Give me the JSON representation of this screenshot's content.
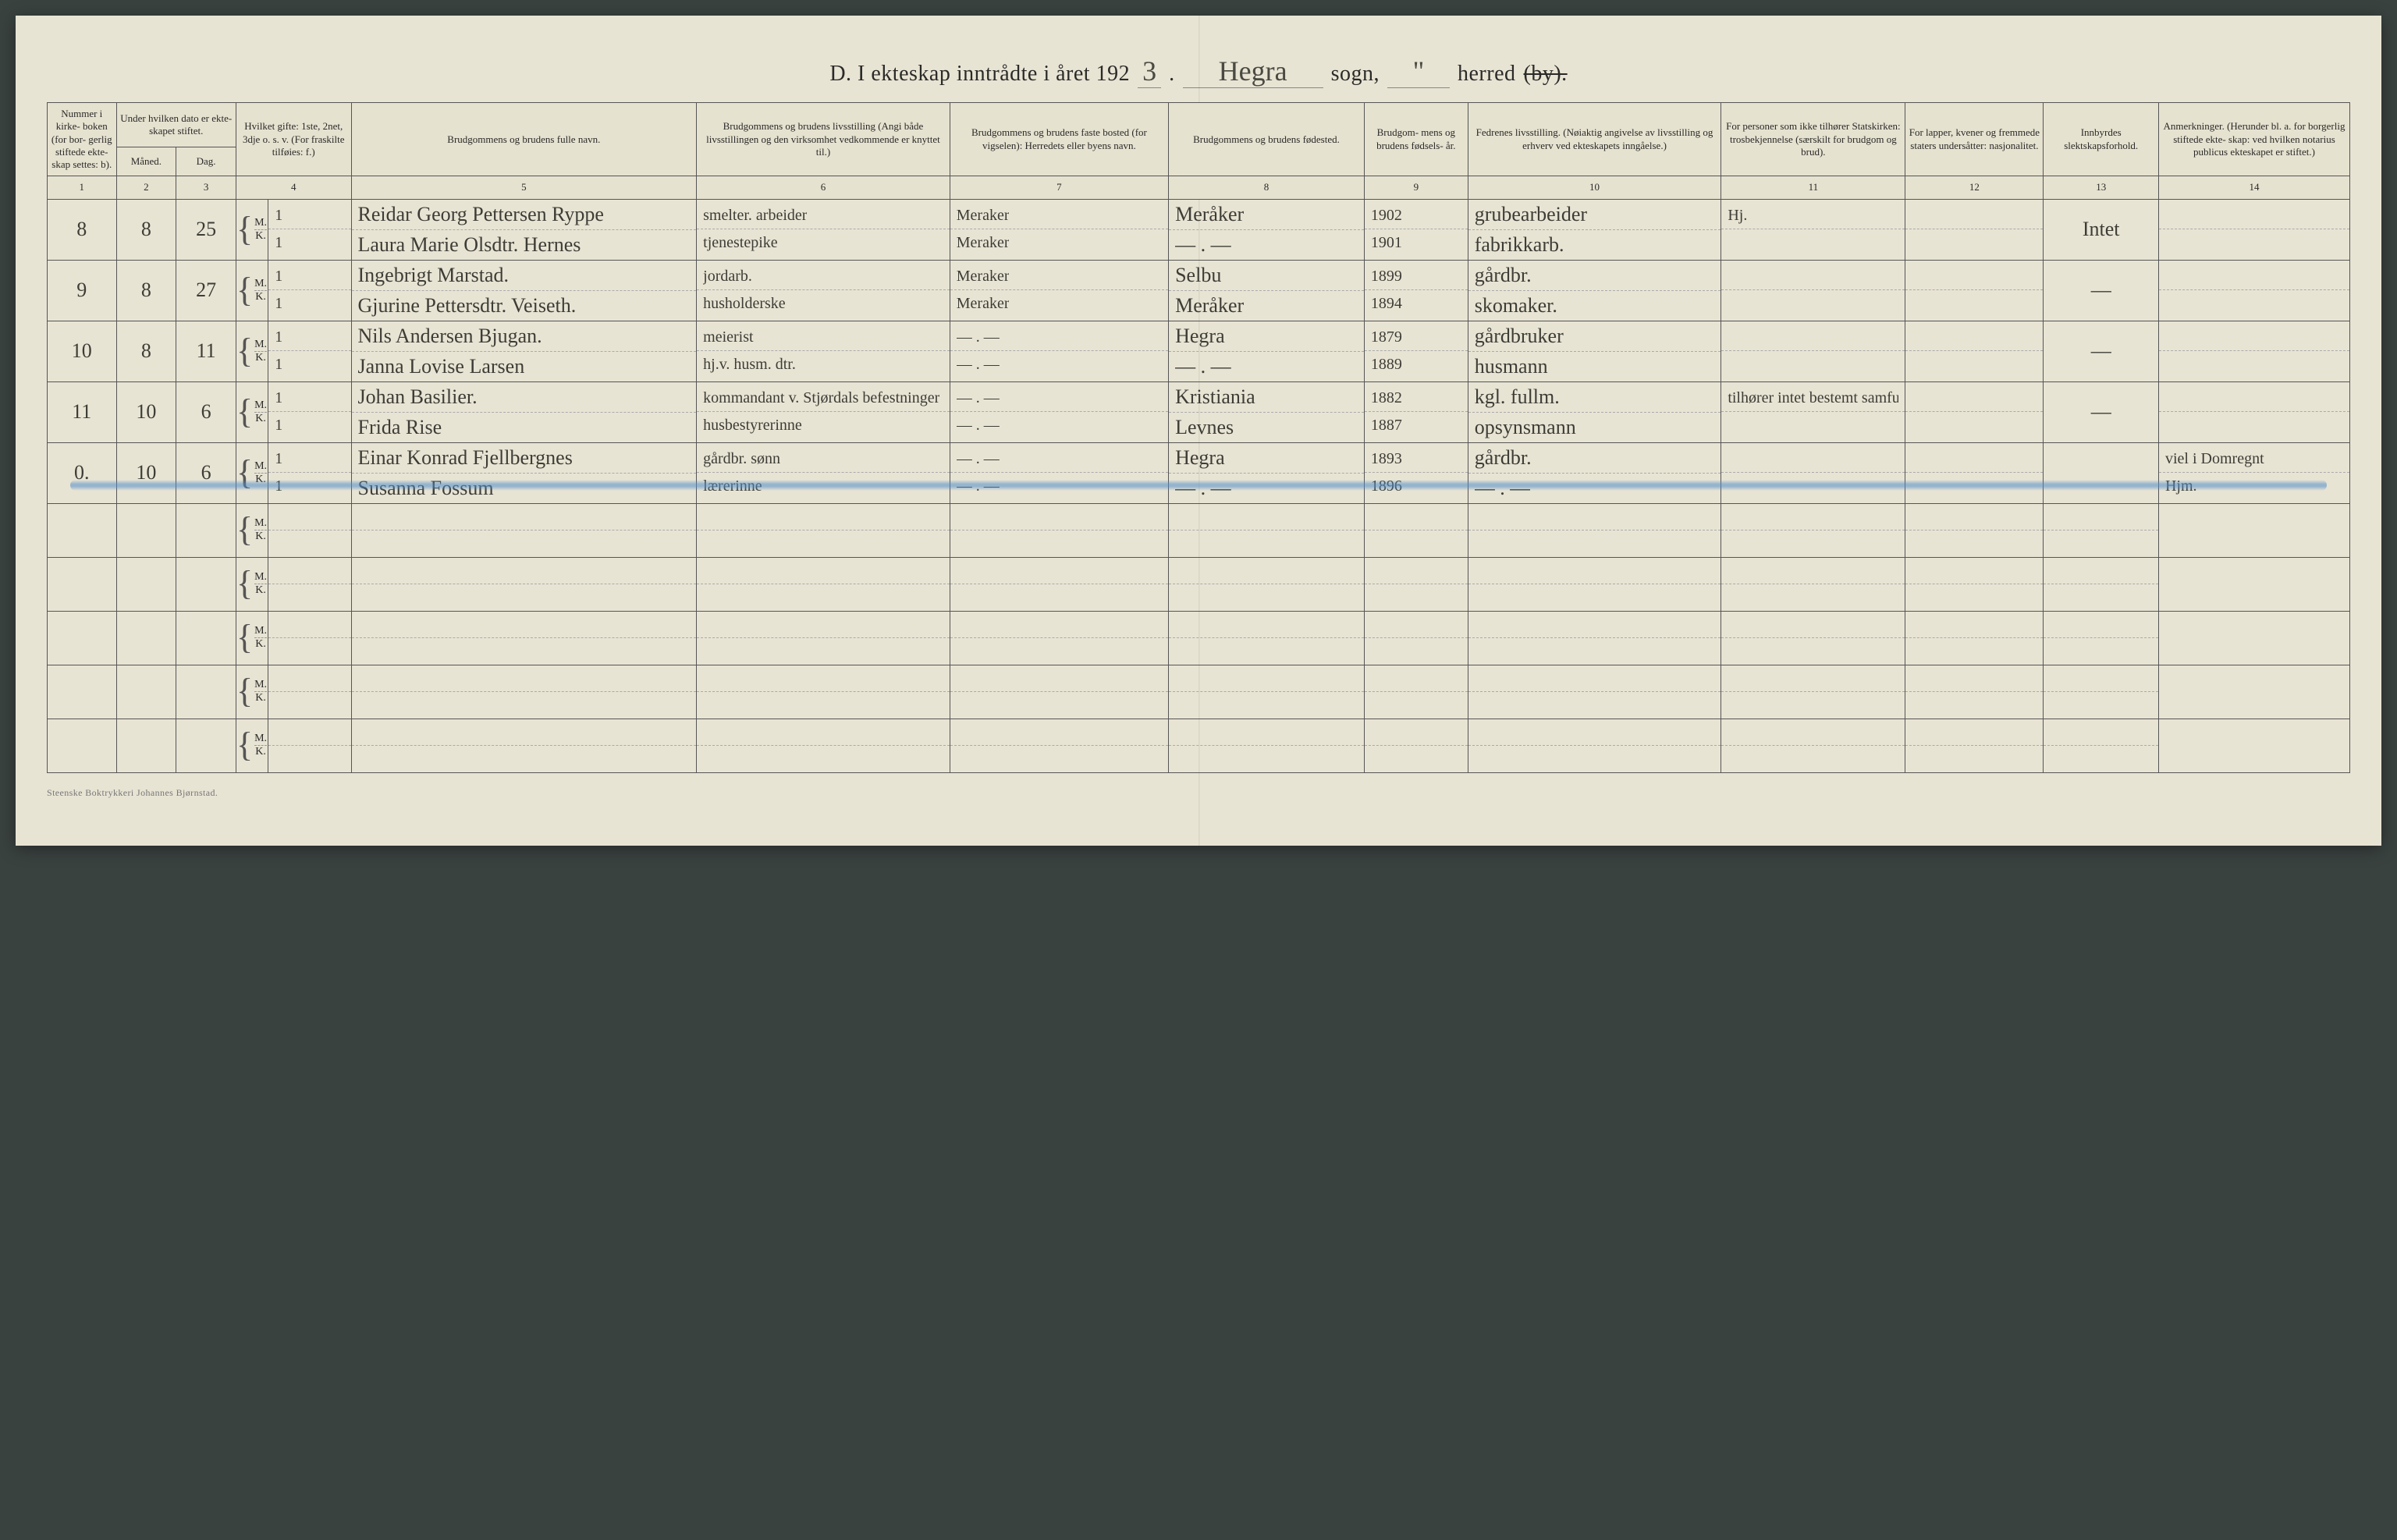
{
  "meta": {
    "background": "#e8e4d4",
    "ink": "#3d3d36",
    "rule": "#555555",
    "blue": "#5a8cc8",
    "hw_font": "Brush Script MT",
    "print_font": "Georgia"
  },
  "title": {
    "prefix": "D.  I ekteskap inntrådte i året 192",
    "year_digit": "3",
    "period": ".",
    "parish_hw": "Hegra",
    "parish_label": "sogn,",
    "district_hw": "\"",
    "district_label_prefix": "herred ",
    "district_label_struck": "(by)."
  },
  "columns": {
    "c1": "Nummer i kirke-\nboken (for bor-\ngerlig stiftede ekte-\nskap settes: b).",
    "c2": "Under hvilken dato er ekte-\nskapet stiftet.",
    "c2a": "Måned.",
    "c2b": "Dag.",
    "c3": "Hvilket gifte:\n1ste, 2net, 3dje\no. s. v.\n(For fraskilte tilføies: f.)",
    "c4": "Brudgommens og brudens fulle navn.",
    "c5": "Brudgommens og brudens livsstilling\n(Angi både livsstillingen og den virksomhet vedkommende er knyttet til.)",
    "c6": "Brudgommens og brudens faste bosted (for vigselen):\nHerredets eller byens navn.",
    "c7": "Brudgommens og brudens fødested.",
    "c8": "Brudgom-\nmens og brudens fødsels-\når.",
    "c9": "Fedrenes livsstilling.\n(Nøiaktig angivelse av livsstilling og erhverv ved ekteskapets inngåelse.)",
    "c10": "For personer som ikke tilhører Statskirken:\ntrosbekjennelse\n(særskilt for brudgom og brud).",
    "c11": "For lapper, kvener og fremmede staters undersåtter:\nnasjonalitet.",
    "c12": "Innbyrdes slektskapsforhold.",
    "c13": "Anmerkninger.\n(Herunder bl. a. for borgerlig stiftede ekte-\nskap: ved hvilken notarius publicus ekteskapet er stiftet.)"
  },
  "colnums": [
    "1",
    "2",
    "3",
    "4",
    "5",
    "6",
    "7",
    "8",
    "9",
    "10",
    "11",
    "12",
    "13",
    "14"
  ],
  "mk": {
    "m": "M.",
    "k": "K."
  },
  "rows": [
    {
      "no": "8",
      "month": "8",
      "day": "25",
      "gifte_m": "1",
      "gifte_k": "1",
      "name_m": "Reidar Georg Pettersen Ryppe",
      "name_k": "Laura Marie Olsdtr. Hernes",
      "occ_m": "smelter. arbeider",
      "occ_k": "tjenestepike",
      "res_m": "Meraker",
      "res_k": "Meraker",
      "birthpl_m": "Meråker",
      "birthpl_k": "— . —",
      "year_m": "1902",
      "year_k": "1901",
      "father_m": "grubearbeider",
      "father_k": "fabrikkarb.",
      "relig_m": "Hj.",
      "relig_k": "",
      "nat_m": "",
      "nat_k": "",
      "kin": "Intet",
      "notes_m": "",
      "notes_k": ""
    },
    {
      "no": "9",
      "month": "8",
      "day": "27",
      "gifte_m": "1",
      "gifte_k": "1",
      "name_m": "Ingebrigt Marstad.",
      "name_k": "Gjurine Pettersdtr. Veiseth.",
      "occ_m": "jordarb.",
      "occ_k": "husholderske",
      "res_m": "Meraker",
      "res_k": "Meraker",
      "birthpl_m": "Selbu",
      "birthpl_k": "Meråker",
      "year_m": "1899",
      "year_k": "1894",
      "father_m": "gårdbr.",
      "father_k": "skomaker.",
      "relig_m": "",
      "relig_k": "",
      "nat_m": "",
      "nat_k": "",
      "kin": "—",
      "notes_m": "",
      "notes_k": ""
    },
    {
      "no": "10",
      "month": "8",
      "day": "11",
      "gifte_m": "1",
      "gifte_k": "1",
      "name_m": "Nils Andersen Bjugan.",
      "name_k": "Janna Lovise Larsen",
      "occ_m": "meierist",
      "occ_k": "hj.v. husm. dtr.",
      "res_m": "— . —",
      "res_k": "— . —",
      "birthpl_m": "Hegra",
      "birthpl_k": "— . —",
      "year_m": "1879",
      "year_k": "1889",
      "father_m": "gårdbruker",
      "father_k": "husmann",
      "relig_m": "",
      "relig_k": "",
      "nat_m": "",
      "nat_k": "",
      "kin": "—",
      "notes_m": "",
      "notes_k": ""
    },
    {
      "no": "11",
      "month": "10",
      "day": "6",
      "gifte_m": "1",
      "gifte_k": "1",
      "name_m": "Johan Basilier.",
      "name_k": "Frida Rise",
      "occ_m": "kommandant v. Stjørdals befestninger",
      "occ_k": "husbestyrerinne",
      "res_m": "— . —",
      "res_k": "— . —",
      "birthpl_m": "Kristiania",
      "birthpl_k": "Levnes",
      "year_m": "1882",
      "year_k": "1887",
      "father_m": "kgl. fullm.",
      "father_k": "opsynsmann",
      "relig_m": "tilhører intet bestemt samfund",
      "relig_k": "",
      "nat_m": "",
      "nat_k": "",
      "kin": "—",
      "notes_m": "",
      "notes_k": ""
    },
    {
      "no": "0.",
      "month": "10",
      "day": "6",
      "gifte_m": "1",
      "gifte_k": "1",
      "name_m": "Einar Konrad Fjellbergnes",
      "name_k": "Susanna Fossum",
      "occ_m": "gårdbr. sønn",
      "occ_k": "lærerinne",
      "res_m": "— . —",
      "res_k": "— . —",
      "birthpl_m": "Hegra",
      "birthpl_k": "— . —",
      "year_m": "1893",
      "year_k": "1896",
      "father_m": "gårdbr.",
      "father_k": "— . —",
      "relig_m": "",
      "relig_k": "",
      "nat_m": "",
      "nat_k": "",
      "kin": "",
      "notes_m": "viel i Domregnt",
      "notes_k": "Hjm."
    }
  ],
  "empty_row_count": 5,
  "footer": "Steenske Boktrykkeri Johannes Bjørnstad.",
  "blue_stroke_row_index": 4,
  "col_widths_pct": [
    3.0,
    2.6,
    2.6,
    1.4,
    3.6,
    15.0,
    11.0,
    9.5,
    8.5,
    4.5,
    11.0,
    8.0,
    6.0,
    5.0,
    8.3
  ]
}
